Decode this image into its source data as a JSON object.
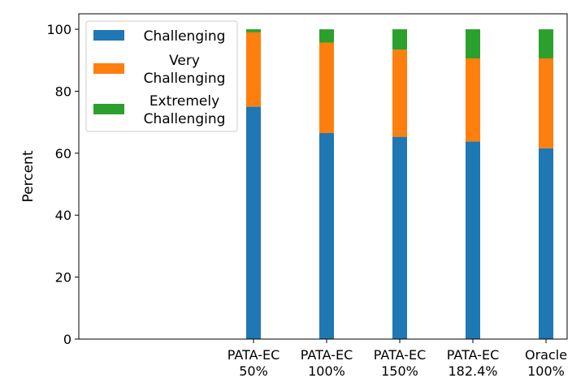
{
  "chart_data": {
    "type": "bar",
    "stacked": true,
    "title": "",
    "xlabel": "",
    "ylabel": "Percent",
    "ylim": [
      0,
      105
    ],
    "yticks": [
      0,
      20,
      40,
      60,
      80,
      100
    ],
    "categories": [
      [
        "PATA-EC",
        "50%"
      ],
      [
        "PATA-EC",
        "100%"
      ],
      [
        "PATA-EC",
        "150%"
      ],
      [
        "PATA-EC",
        "182.4%"
      ],
      [
        "Oracle",
        "100%"
      ]
    ],
    "series": [
      {
        "name": "Challenging",
        "color": "#1f77b4",
        "values": [
          75.0,
          66.5,
          65.3,
          63.8,
          61.6
        ]
      },
      {
        "name": [
          "Very",
          "Challenging"
        ],
        "color": "#ff7f0e",
        "values": [
          24.0,
          29.2,
          28.1,
          26.8,
          29.0
        ]
      },
      {
        "name": [
          "Extremely",
          "Challenging"
        ],
        "color": "#2ca02c",
        "values": [
          1.0,
          4.3,
          6.6,
          9.4,
          9.4
        ]
      }
    ],
    "legend_position": "top-left",
    "grid": false
  }
}
